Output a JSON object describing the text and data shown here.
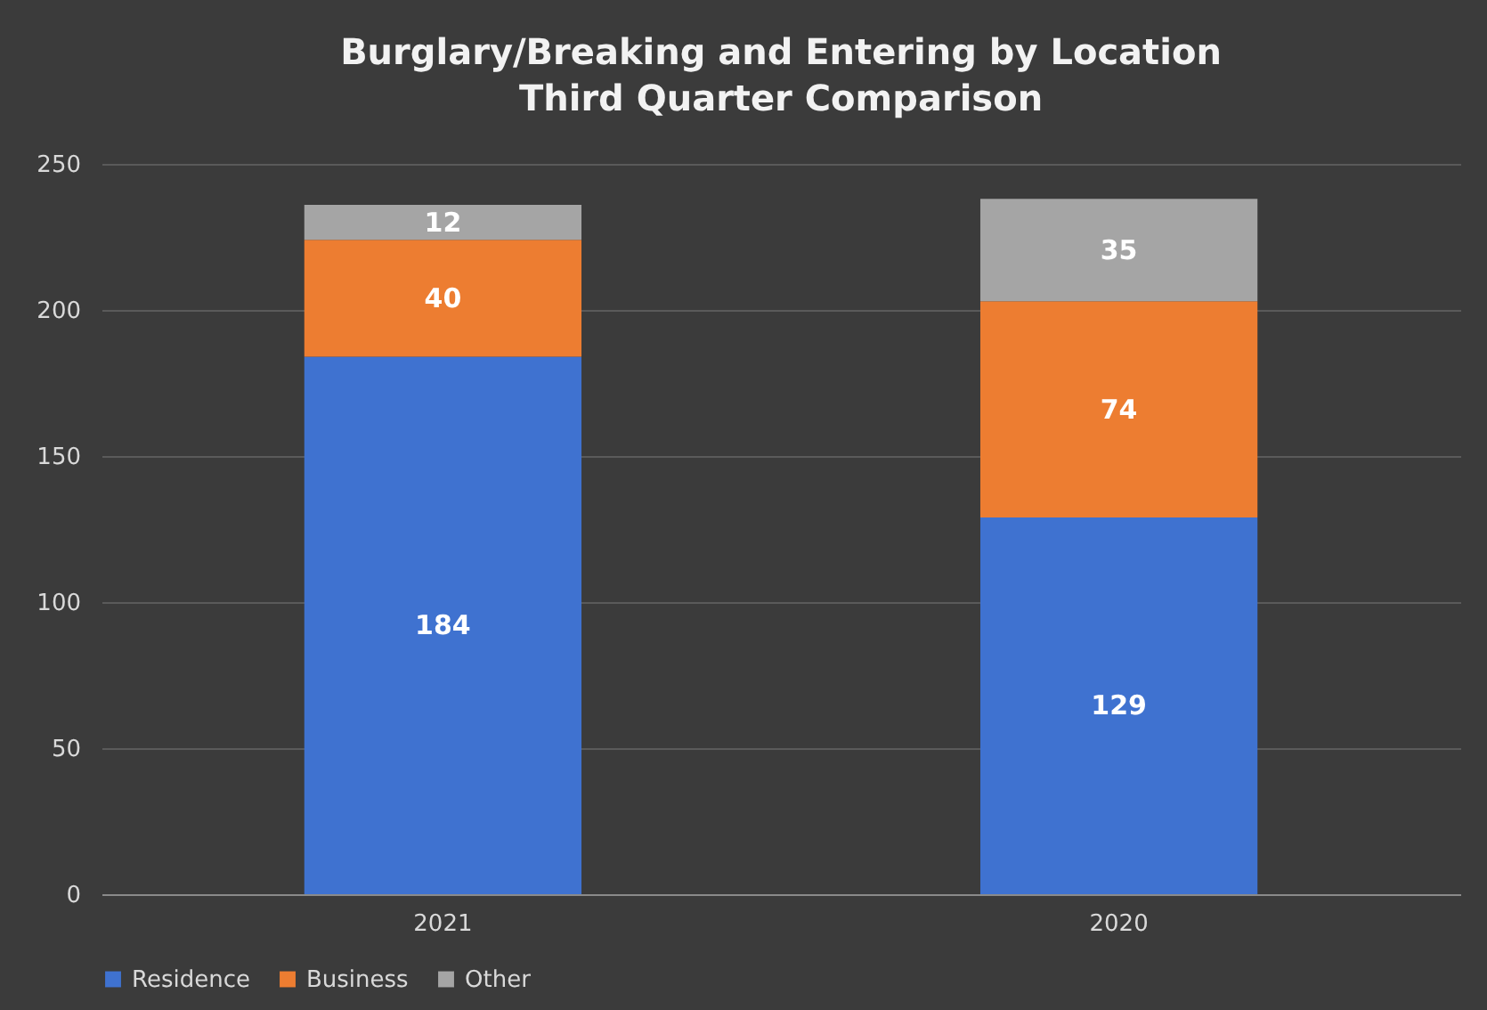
{
  "chart_data": {
    "type": "bar",
    "title": "Burglary/Breaking and Entering by Location",
    "subtitle": "Third Quarter Comparison",
    "categories": [
      "2021",
      "2020"
    ],
    "stacked": true,
    "series": [
      {
        "name": "Residence",
        "color": "#3f72d0",
        "values": [
          184,
          129
        ]
      },
      {
        "name": "Business",
        "color": "#ed7d31",
        "values": [
          40,
          74
        ]
      },
      {
        "name": "Other",
        "color": "#a5a5a5",
        "values": [
          12,
          35
        ]
      }
    ],
    "ylim": [
      0,
      250
    ],
    "yticks": [
      0,
      50,
      100,
      150,
      200,
      250
    ],
    "grid": "y",
    "legend": "bottom",
    "data_labels": true
  }
}
